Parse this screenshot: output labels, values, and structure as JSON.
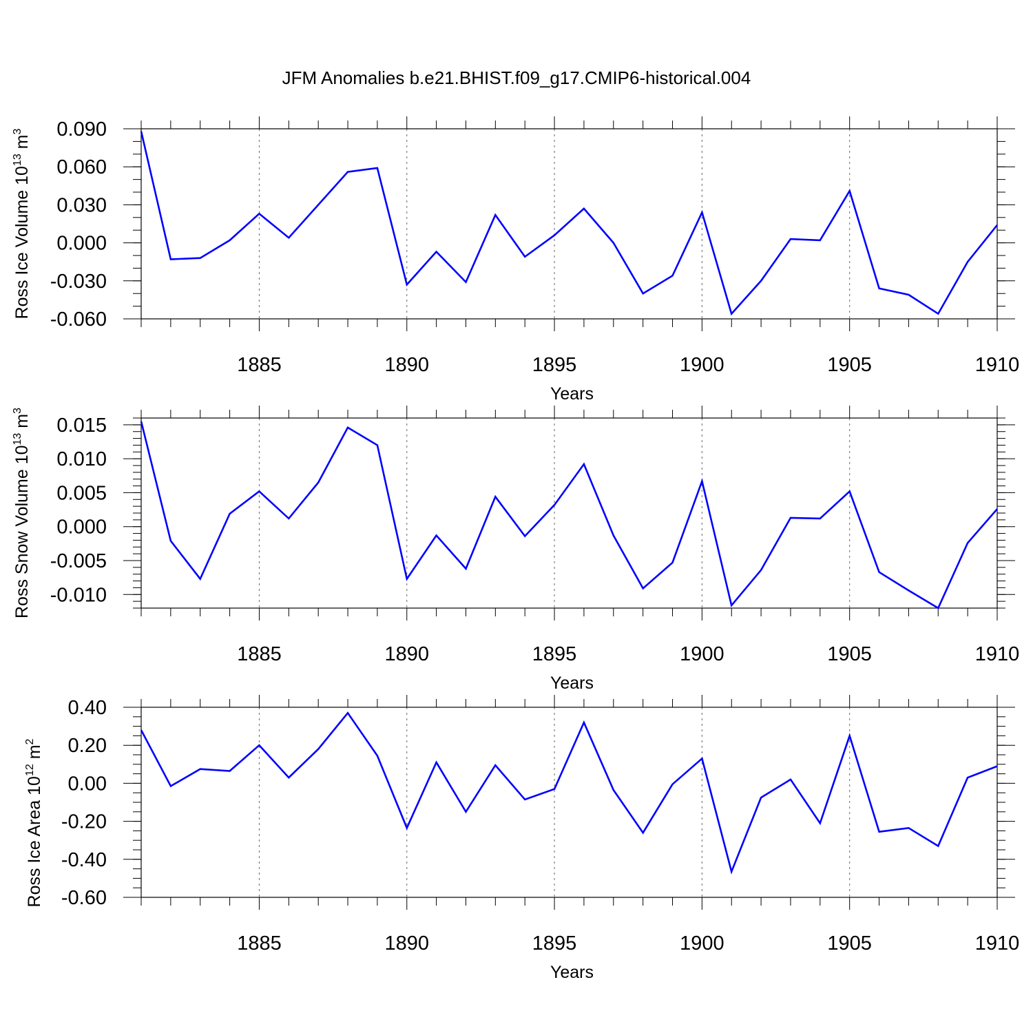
{
  "figure": {
    "title": "JFM Anomalies b.e21.BHIST.f09_g17.CMIP6-historical.004",
    "line_color": "#0000ff"
  },
  "chart_data": [
    {
      "type": "line",
      "title": "",
      "xlabel": "Years",
      "ylabel": "Ross Ice Volume 10",
      "ylabel_sup": "13",
      "ylabel_unit": "m",
      "ylabel_unit_sup": "3",
      "xlim": [
        1881,
        1910
      ],
      "ylim": [
        -0.06,
        0.09
      ],
      "yticks": [
        0.09,
        0.06,
        0.03,
        0.0,
        -0.03,
        -0.06
      ],
      "ytick_labels": [
        "0.090",
        "0.060",
        "0.030",
        "0.000",
        "-0.030",
        "-0.060"
      ],
      "yminor_step": 0.01,
      "xticks": [
        1885,
        1890,
        1895,
        1900,
        1905,
        1910
      ],
      "xtick_labels": [
        "1885",
        "1890",
        "1895",
        "1900",
        "1905",
        "1910"
      ],
      "grid": "x-dashed",
      "x": [
        1881,
        1882,
        1883,
        1884,
        1885,
        1886,
        1887,
        1888,
        1889,
        1890,
        1891,
        1892,
        1893,
        1894,
        1895,
        1896,
        1897,
        1898,
        1899,
        1900,
        1901,
        1902,
        1903,
        1904,
        1905,
        1906,
        1907,
        1908,
        1909,
        1910
      ],
      "series": [
        {
          "values": [
            0.088,
            -0.013,
            -0.012,
            0.002,
            0.023,
            0.004,
            0.03,
            0.056,
            0.059,
            -0.033,
            -0.007,
            -0.031,
            0.022,
            -0.011,
            0.006,
            0.027,
            0.0,
            -0.04,
            -0.026,
            0.024,
            -0.056,
            -0.03,
            0.003,
            0.002,
            0.041,
            -0.036,
            -0.041,
            -0.056,
            -0.015,
            0.014
          ]
        }
      ]
    },
    {
      "type": "line",
      "title": "",
      "xlabel": "Years",
      "ylabel": "Ross Snow Volume 10",
      "ylabel_sup": "13",
      "ylabel_unit": "m",
      "ylabel_unit_sup": "3",
      "xlim": [
        1881,
        1910
      ],
      "ylim": [
        -0.012,
        0.016
      ],
      "yticks": [
        0.015,
        0.01,
        0.005,
        0.0,
        -0.005,
        -0.01
      ],
      "ytick_labels": [
        "0.015",
        "0.010",
        "0.005",
        "0.000",
        "-0.005",
        "-0.010"
      ],
      "yminor_step": 0.001,
      "xticks": [
        1885,
        1890,
        1895,
        1900,
        1905,
        1910
      ],
      "xtick_labels": [
        "1885",
        "1890",
        "1895",
        "1900",
        "1905",
        "1910"
      ],
      "grid": "x-dashed",
      "x": [
        1881,
        1882,
        1883,
        1884,
        1885,
        1886,
        1887,
        1888,
        1889,
        1890,
        1891,
        1892,
        1893,
        1894,
        1895,
        1896,
        1897,
        1898,
        1899,
        1900,
        1901,
        1902,
        1903,
        1904,
        1905,
        1906,
        1907,
        1908,
        1909,
        1910
      ],
      "series": [
        {
          "values": [
            0.0155,
            -0.0021,
            -0.0077,
            0.0019,
            0.0052,
            0.0012,
            0.0065,
            0.0146,
            0.012,
            -0.0077,
            -0.0013,
            -0.0062,
            0.0044,
            -0.0014,
            0.0032,
            0.0092,
            -0.0013,
            -0.0091,
            -0.0053,
            0.0067,
            -0.0116,
            -0.0064,
            0.0013,
            0.0012,
            0.0052,
            -0.0067,
            -0.0094,
            -0.012,
            -0.0024,
            0.0026
          ]
        }
      ]
    },
    {
      "type": "line",
      "title": "",
      "xlabel": "Years",
      "ylabel": "Ross Ice Area 10",
      "ylabel_sup": "12",
      "ylabel_unit": "m",
      "ylabel_unit_sup": "2",
      "xlim": [
        1881,
        1910
      ],
      "ylim": [
        -0.6,
        0.4
      ],
      "yticks": [
        0.4,
        0.2,
        0.0,
        -0.2,
        -0.4,
        -0.6
      ],
      "ytick_labels": [
        "0.40",
        "0.20",
        "0.00",
        "-0.20",
        "-0.40",
        "-0.60"
      ],
      "yminor_step": 0.05,
      "xticks": [
        1885,
        1890,
        1895,
        1900,
        1905,
        1910
      ],
      "xtick_labels": [
        "1885",
        "1890",
        "1895",
        "1900",
        "1905",
        "1910"
      ],
      "grid": "x-dashed",
      "x": [
        1881,
        1882,
        1883,
        1884,
        1885,
        1886,
        1887,
        1888,
        1889,
        1890,
        1891,
        1892,
        1893,
        1894,
        1895,
        1896,
        1897,
        1898,
        1899,
        1900,
        1901,
        1902,
        1903,
        1904,
        1905,
        1906,
        1907,
        1908,
        1909,
        1910
      ],
      "series": [
        {
          "values": [
            0.28,
            -0.015,
            0.075,
            0.065,
            0.2,
            0.03,
            0.18,
            0.37,
            0.145,
            -0.235,
            0.11,
            -0.15,
            0.095,
            -0.085,
            -0.03,
            0.32,
            -0.035,
            -0.26,
            -0.005,
            0.13,
            -0.465,
            -0.075,
            0.02,
            -0.21,
            0.25,
            -0.255,
            -0.235,
            -0.33,
            0.03,
            0.09
          ]
        }
      ]
    }
  ]
}
